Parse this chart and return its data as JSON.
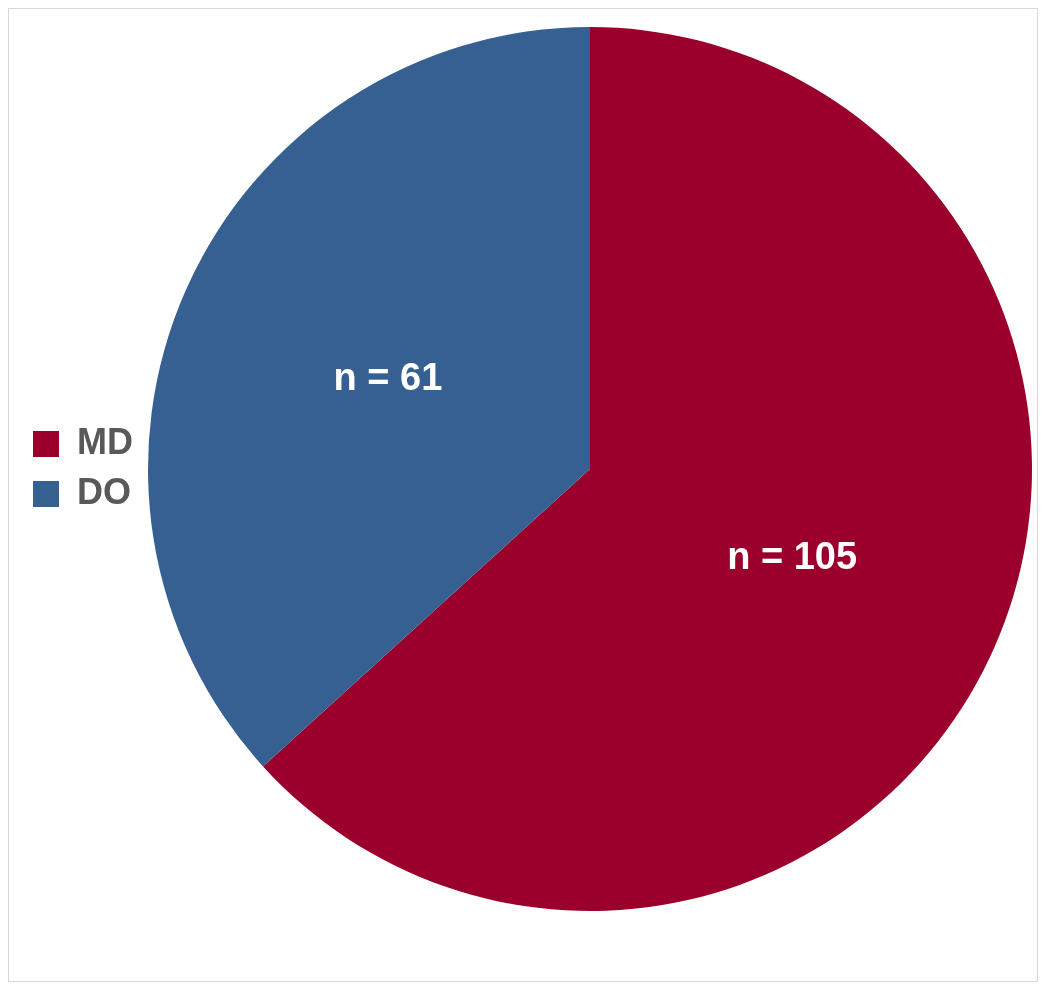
{
  "chart_data": {
    "type": "pie",
    "categories": [
      "MD",
      "DO"
    ],
    "values": [
      105,
      61
    ],
    "colors": [
      "#9b002c",
      "#376092"
    ],
    "value_labels": [
      "n = 105",
      "n = 61"
    ],
    "legend": "left"
  }
}
